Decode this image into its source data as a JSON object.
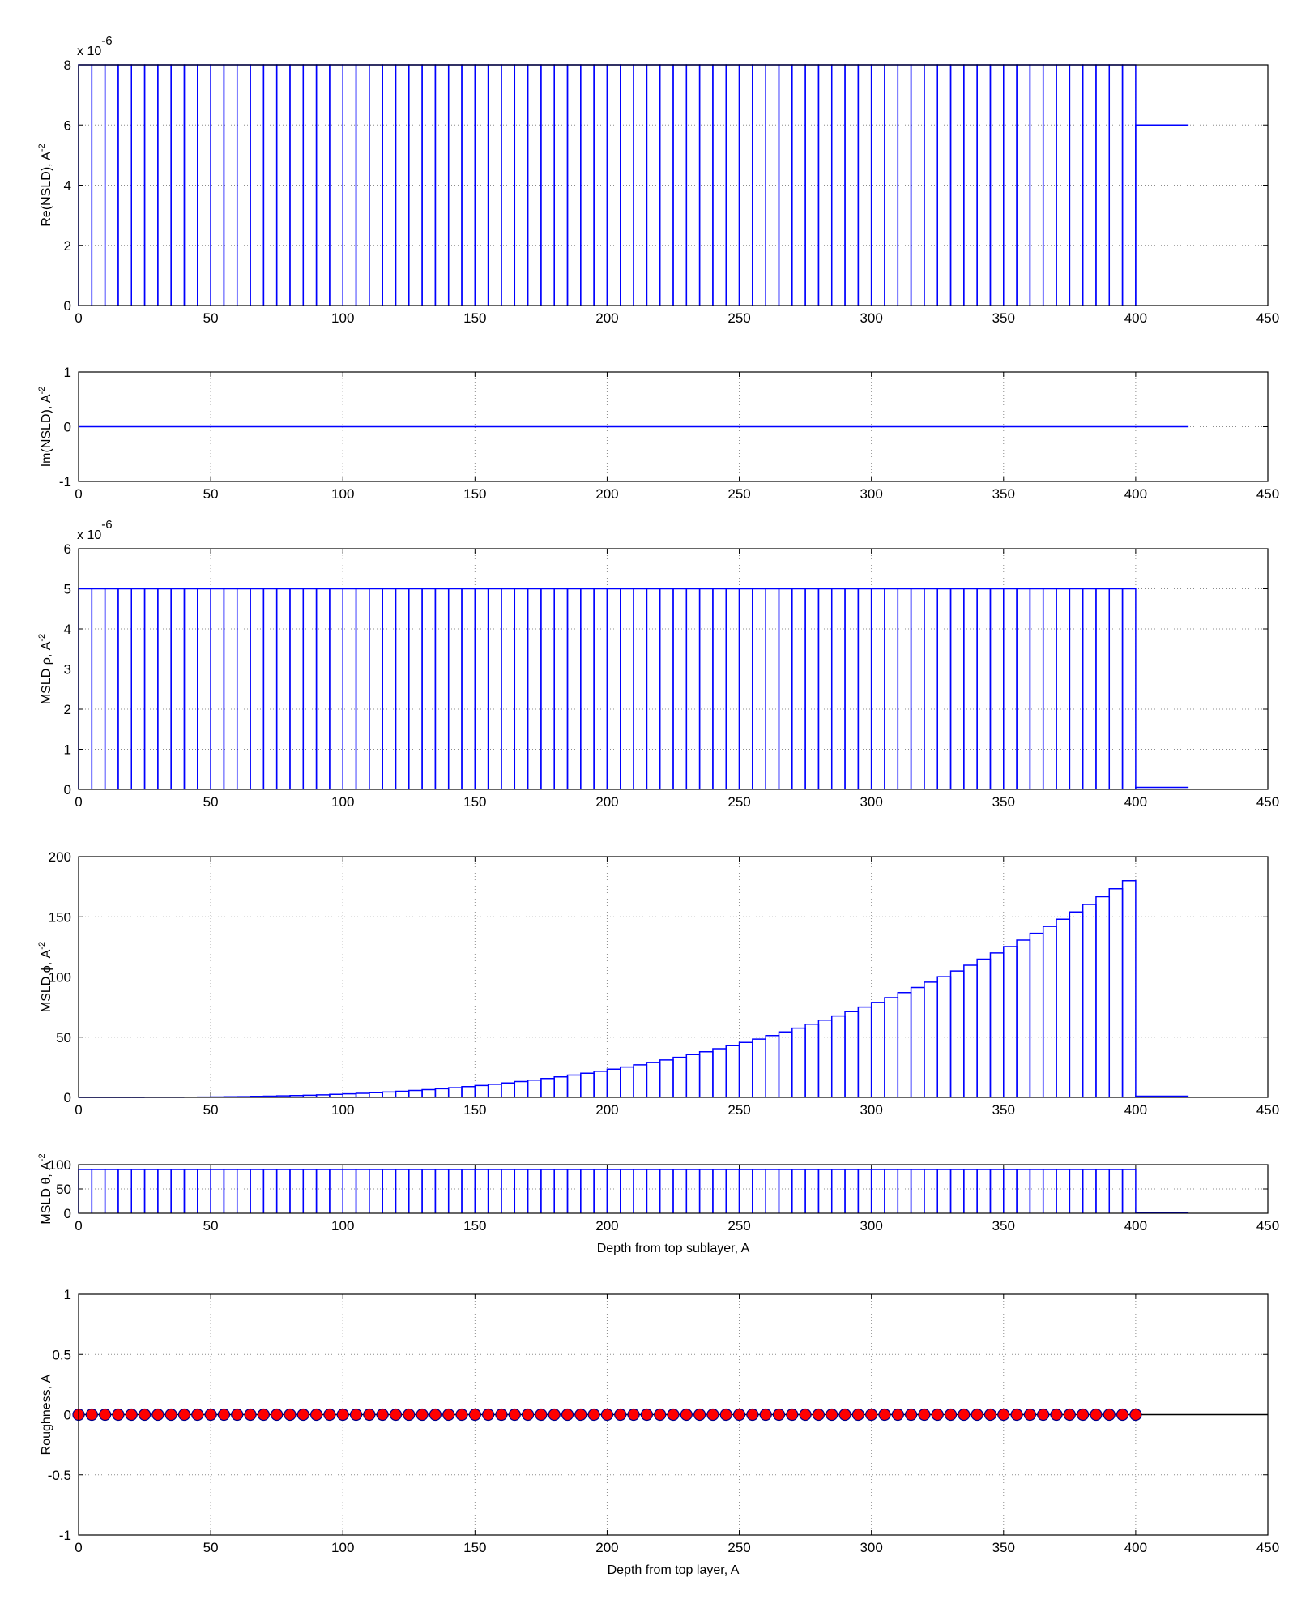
{
  "chart_data": [
    {
      "id": "re_nsld",
      "type": "bar",
      "ylabel": "Re(NSLD), A",
      "ylabel_sup": "-2",
      "exponent_label": "x 10",
      "exponent_sup": "-6",
      "xlabel": "",
      "xlim": [
        0,
        450
      ],
      "ylim": [
        0,
        8
      ],
      "xticks": [
        "0",
        "50",
        "100",
        "150",
        "200",
        "250",
        "300",
        "350",
        "400",
        "450"
      ],
      "yticks": [
        "0",
        "2",
        "4",
        "6",
        "8"
      ],
      "grid": true,
      "color": "#0000ff",
      "layers": {
        "count": 80,
        "start": 0,
        "end": 400,
        "value_scaled": 8
      },
      "substrate": {
        "x0": 400,
        "x1": 420,
        "value_scaled": 6
      },
      "actual_scale": 1e-06
    },
    {
      "id": "im_nsld",
      "type": "line",
      "ylabel": "Im(NSLD), A",
      "ylabel_sup": "-2",
      "xlabel": "",
      "xlim": [
        0,
        450
      ],
      "ylim": [
        -1,
        1
      ],
      "xticks": [
        "0",
        "50",
        "100",
        "150",
        "200",
        "250",
        "300",
        "350",
        "400",
        "450"
      ],
      "yticks": [
        "-1",
        "0",
        "1"
      ],
      "grid": true,
      "color": "#0000ff",
      "line": {
        "x": [
          0,
          420
        ],
        "y": [
          0,
          0
        ]
      }
    },
    {
      "id": "msld_rho",
      "type": "bar",
      "ylabel": "MSLD ρ, A",
      "ylabel_sup": "-2",
      "exponent_label": "x 10",
      "exponent_sup": "-6",
      "xlabel": "",
      "xlim": [
        0,
        450
      ],
      "ylim": [
        0,
        6
      ],
      "xticks": [
        "0",
        "50",
        "100",
        "150",
        "200",
        "250",
        "300",
        "350",
        "400",
        "450"
      ],
      "yticks": [
        "0",
        "1",
        "2",
        "3",
        "4",
        "5",
        "6"
      ],
      "grid": true,
      "color": "#0000ff",
      "layers": {
        "count": 80,
        "start": 0,
        "end": 400,
        "value_scaled": 5
      },
      "substrate": {
        "x0": 400,
        "x1": 420,
        "value_scaled": 0.05
      },
      "actual_scale": 1e-06
    },
    {
      "id": "msld_phi",
      "type": "bar",
      "ylabel": "MSLD ϕ, A",
      "ylabel_sup": "-2",
      "xlabel": "",
      "xlim": [
        0,
        450
      ],
      "ylim": [
        0,
        200
      ],
      "xticks": [
        "0",
        "50",
        "100",
        "150",
        "200",
        "250",
        "300",
        "350",
        "400",
        "450"
      ],
      "yticks": [
        "0",
        "50",
        "100",
        "150",
        "200"
      ],
      "grid": true,
      "color": "#0000ff",
      "layers": {
        "count": 80,
        "start": 0,
        "end": 400,
        "curve": "cubic",
        "first_value": 0,
        "last_value": 180
      },
      "substrate": {
        "x0": 400,
        "x1": 420,
        "value_scaled": 1
      }
    },
    {
      "id": "msld_theta",
      "type": "bar",
      "ylabel": "MSLD θ, A",
      "ylabel_sup": "-2",
      "xlabel": "Depth from top sublayer, A",
      "xlim": [
        0,
        450
      ],
      "ylim": [
        0,
        100
      ],
      "xticks": [
        "0",
        "50",
        "100",
        "150",
        "200",
        "250",
        "300",
        "350",
        "400",
        "450"
      ],
      "yticks": [
        "0",
        "50",
        "100"
      ],
      "grid": true,
      "color": "#0000ff",
      "layers": {
        "count": 80,
        "start": 0,
        "end": 400,
        "value_scaled": 90
      },
      "substrate": {
        "x0": 400,
        "x1": 420,
        "value_scaled": 1
      }
    },
    {
      "id": "roughness",
      "type": "scatter",
      "ylabel": "Roughness, A",
      "xlabel": "Depth from top layer, A",
      "xlim": [
        0,
        450
      ],
      "ylim": [
        -1,
        1
      ],
      "xticks": [
        "0",
        "50",
        "100",
        "150",
        "200",
        "250",
        "300",
        "350",
        "400",
        "450"
      ],
      "yticks": [
        "-1",
        "-0.5",
        "0",
        "0.5",
        "1"
      ],
      "grid": true,
      "marker_color": "#ff0000",
      "marker_edge": "#00008b",
      "line_color": "#000000",
      "points": {
        "count": 81,
        "start": 0,
        "end": 400,
        "y": 0
      },
      "baseline": {
        "x": [
          0,
          450
        ],
        "y": [
          0,
          0
        ]
      }
    }
  ]
}
